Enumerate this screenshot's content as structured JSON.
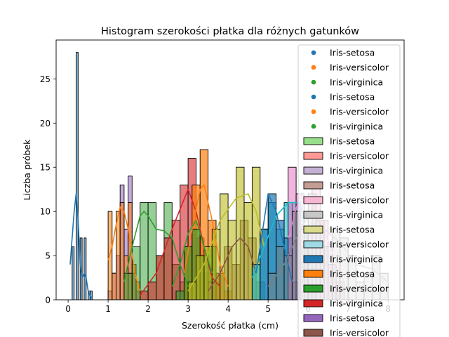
{
  "chart_data": {
    "type": "bar",
    "title": "Histogram szerokości płatka dla różnych gatunków",
    "xlabel": "Szerokość płatka (cm)",
    "ylabel": "Liczba próbek",
    "xlim": [
      -0.3,
      8.4
    ],
    "ylim": [
      0,
      29.4
    ],
    "xticks": [
      "0",
      "1",
      "2",
      "3",
      "4",
      "5",
      "6",
      "7",
      "8"
    ],
    "yticks": [
      "0",
      "5",
      "10",
      "15",
      "20",
      "25"
    ],
    "grid": false,
    "legend_position": "top-right",
    "legend": [
      {
        "label": "Iris-setosa",
        "kind": "dot",
        "color": "#1f77b4"
      },
      {
        "label": "Iris-versicolor",
        "kind": "dot",
        "color": "#ff7f0e"
      },
      {
        "label": "Iris-virginica",
        "kind": "dot",
        "color": "#2ca02c"
      },
      {
        "label": "Iris-setosa",
        "kind": "dot",
        "color": "#1f77b4"
      },
      {
        "label": "Iris-versicolor",
        "kind": "dot",
        "color": "#ff7f0e"
      },
      {
        "label": "Iris-virginica",
        "kind": "dot",
        "color": "#2ca02c"
      },
      {
        "label": "Iris-setosa",
        "kind": "patch",
        "color": "#98df8a"
      },
      {
        "label": "Iris-versicolor",
        "kind": "patch",
        "color": "#ff9896"
      },
      {
        "label": "Iris-virginica",
        "kind": "patch",
        "color": "#c5b0d5"
      },
      {
        "label": "Iris-setosa",
        "kind": "patch",
        "color": "#c49c94"
      },
      {
        "label": "Iris-versicolor",
        "kind": "patch",
        "color": "#f7b6d2"
      },
      {
        "label": "Iris-virginica",
        "kind": "patch",
        "color": "#c7c7c7"
      },
      {
        "label": "Iris-setosa",
        "kind": "patch",
        "color": "#dbdb8d"
      },
      {
        "label": "Iris-versicolor",
        "kind": "patch",
        "color": "#9edae5"
      },
      {
        "label": "Iris-virginica",
        "kind": "patch",
        "color": "#1f77b4"
      },
      {
        "label": "Iris-setosa",
        "kind": "patch",
        "color": "#ff7f0e"
      },
      {
        "label": "Iris-versicolor",
        "kind": "patch",
        "color": "#2ca02c"
      },
      {
        "label": "Iris-virginica",
        "kind": "patch",
        "color": "#d62728"
      },
      {
        "label": "Iris-setosa",
        "kind": "patch",
        "color": "#9467bd"
      },
      {
        "label": "Iris-versicolor",
        "kind": "patch",
        "color": "#8c564b"
      }
    ],
    "series": [
      {
        "color": "#1f77b4",
        "alpha": 0.55,
        "bins": [
          [
            0.1,
            0.15,
            6
          ],
          [
            0.2,
            0.25,
            28
          ],
          [
            0.3,
            0.35,
            7
          ],
          [
            0.4,
            0.45,
            7
          ],
          [
            0.5,
            0.55,
            1
          ],
          [
            0.55,
            0.6,
            1
          ]
        ],
        "kde": [
          [
            0.05,
            4
          ],
          [
            0.1,
            7
          ],
          [
            0.15,
            10
          ],
          [
            0.2,
            12
          ],
          [
            0.25,
            9
          ],
          [
            0.3,
            4
          ],
          [
            0.35,
            2.5
          ],
          [
            0.4,
            3
          ],
          [
            0.45,
            2.5
          ],
          [
            0.5,
            1
          ],
          [
            0.55,
            0.4
          ],
          [
            0.6,
            0.2
          ]
        ]
      },
      {
        "color": "#9467bd",
        "alpha": 0.55,
        "bins": [
          [
            1.0,
            1.1,
            1
          ],
          [
            1.1,
            1.2,
            3
          ],
          [
            1.2,
            1.3,
            5
          ],
          [
            1.3,
            1.4,
            13
          ],
          [
            1.4,
            1.5,
            8
          ],
          [
            1.5,
            1.6,
            14
          ],
          [
            1.6,
            1.7,
            3
          ],
          [
            1.7,
            1.8,
            1
          ]
        ],
        "kde": []
      },
      {
        "color": "#ff7f0e",
        "alpha": 0.55,
        "bins": [
          [
            1.0,
            1.1,
            10
          ],
          [
            1.1,
            1.2,
            3
          ],
          [
            1.2,
            1.3,
            10
          ],
          [
            1.3,
            1.4,
            11
          ],
          [
            1.4,
            1.5,
            5
          ],
          [
            1.5,
            1.6,
            11
          ],
          [
            1.6,
            1.7,
            4
          ],
          [
            1.7,
            1.8,
            2
          ]
        ],
        "kde": [
          [
            1.0,
            4.5
          ],
          [
            1.1,
            6
          ],
          [
            1.2,
            8.5
          ],
          [
            1.3,
            10.5
          ],
          [
            1.4,
            10
          ],
          [
            1.5,
            8
          ],
          [
            1.6,
            5
          ],
          [
            1.7,
            2.5
          ],
          [
            1.8,
            1
          ]
        ]
      },
      {
        "color": "#2ca02c",
        "alpha": 0.5,
        "bins": [
          [
            1.4,
            1.6,
            3
          ],
          [
            1.6,
            1.8,
            6
          ],
          [
            1.8,
            2.0,
            11
          ],
          [
            2.0,
            2.2,
            11
          ],
          [
            2.2,
            2.4,
            5
          ],
          [
            2.4,
            2.6,
            11
          ],
          [
            2.6,
            2.8,
            4
          ],
          [
            2.8,
            3.0,
            2
          ]
        ],
        "kde": [
          [
            1.4,
            2
          ],
          [
            1.6,
            6
          ],
          [
            1.8,
            9.5
          ],
          [
            1.9,
            10
          ],
          [
            2.0,
            9.5
          ],
          [
            2.2,
            8
          ],
          [
            2.4,
            7.8
          ],
          [
            2.6,
            7
          ],
          [
            2.8,
            4
          ],
          [
            3.0,
            1.5
          ]
        ]
      },
      {
        "color": "#d62728",
        "alpha": 0.6,
        "bins": [
          [
            1.8,
            2.0,
            1
          ],
          [
            2.0,
            2.2,
            2
          ],
          [
            2.2,
            2.4,
            5
          ],
          [
            2.4,
            2.6,
            7
          ],
          [
            2.6,
            2.8,
            9
          ],
          [
            2.8,
            3.0,
            13
          ],
          [
            3.0,
            3.2,
            16
          ],
          [
            3.2,
            3.4,
            7
          ],
          [
            3.4,
            3.6,
            3
          ],
          [
            3.6,
            3.8,
            2
          ]
        ],
        "kde": [
          [
            1.8,
            0.5
          ],
          [
            2.2,
            3
          ],
          [
            2.6,
            8
          ],
          [
            3.0,
            12.5
          ],
          [
            3.2,
            10
          ],
          [
            3.4,
            6
          ],
          [
            3.6,
            2.5
          ],
          [
            3.8,
            1.5
          ]
        ]
      },
      {
        "color": "#ff7f0e",
        "alpha": 0.7,
        "bins": [
          [
            2.9,
            3.1,
            6
          ],
          [
            3.1,
            3.3,
            13
          ],
          [
            3.3,
            3.5,
            17
          ],
          [
            3.5,
            3.7,
            9
          ],
          [
            3.7,
            3.9,
            3
          ],
          [
            3.9,
            4.1,
            1
          ]
        ],
        "kde": [
          [
            2.9,
            3
          ],
          [
            3.1,
            8
          ],
          [
            3.3,
            12.5
          ],
          [
            3.4,
            13
          ],
          [
            3.6,
            9
          ],
          [
            3.8,
            4
          ],
          [
            4.0,
            1.5
          ]
        ]
      },
      {
        "color": "#2ca02c",
        "alpha": 0.6,
        "bins": [
          [
            2.7,
            2.9,
            1
          ],
          [
            2.9,
            3.1,
            6
          ],
          [
            3.1,
            3.3,
            8
          ],
          [
            3.3,
            3.5,
            5
          ],
          [
            3.5,
            3.7,
            6
          ]
        ],
        "kde": [
          [
            2.6,
            1.5
          ],
          [
            2.8,
            4
          ],
          [
            3.0,
            7.5
          ],
          [
            3.2,
            9
          ],
          [
            3.4,
            6
          ],
          [
            3.6,
            3
          ]
        ]
      },
      {
        "color": "#8c564b",
        "alpha": 0.55,
        "bins": [
          [
            3.5,
            3.7,
            2
          ],
          [
            3.7,
            3.9,
            3
          ],
          [
            3.9,
            4.1,
            6
          ],
          [
            4.1,
            4.3,
            4
          ],
          [
            4.3,
            4.5,
            9
          ],
          [
            4.5,
            4.7,
            7
          ],
          [
            4.7,
            4.9,
            2
          ]
        ],
        "kde": [
          [
            3.5,
            1
          ],
          [
            3.8,
            3
          ],
          [
            4.1,
            6
          ],
          [
            4.3,
            7
          ],
          [
            4.5,
            6
          ],
          [
            4.7,
            3
          ]
        ]
      },
      {
        "color": "#bcbd22",
        "alpha": 0.6,
        "bins": [
          [
            3.0,
            3.2,
            2
          ],
          [
            3.2,
            3.4,
            5
          ],
          [
            3.4,
            3.6,
            6
          ],
          [
            3.6,
            3.8,
            8
          ],
          [
            3.8,
            4.0,
            12
          ],
          [
            4.0,
            4.2,
            9
          ],
          [
            4.2,
            4.4,
            15
          ],
          [
            4.4,
            4.6,
            11
          ],
          [
            4.6,
            4.8,
            15
          ]
        ],
        "kde": [
          [
            3.0,
            1
          ],
          [
            3.4,
            4
          ],
          [
            3.8,
            9
          ],
          [
            4.2,
            11.5
          ],
          [
            4.5,
            12
          ],
          [
            4.7,
            10
          ],
          [
            4.9,
            6
          ]
        ]
      },
      {
        "color": "#17becf",
        "alpha": 0.6,
        "bins": [
          [
            4.6,
            4.8,
            4
          ],
          [
            4.8,
            5.0,
            8
          ],
          [
            5.0,
            5.2,
            11
          ],
          [
            5.2,
            5.4,
            8
          ],
          [
            5.4,
            5.6,
            11
          ],
          [
            5.6,
            5.8,
            11
          ],
          [
            5.8,
            6.0,
            6
          ],
          [
            6.0,
            6.2,
            1
          ]
        ],
        "kde": [
          [
            4.6,
            2.5
          ],
          [
            4.9,
            6
          ],
          [
            5.2,
            9.5
          ],
          [
            5.5,
            11
          ],
          [
            5.8,
            11
          ],
          [
            6.0,
            6
          ],
          [
            6.2,
            2
          ]
        ]
      },
      {
        "color": "#1f77b4",
        "alpha": 0.7,
        "bins": [
          [
            4.8,
            5.0,
            8
          ],
          [
            5.0,
            5.2,
            12
          ],
          [
            5.2,
            5.4,
            9
          ],
          [
            5.4,
            5.6,
            7
          ],
          [
            5.6,
            5.8,
            2
          ]
        ],
        "kde": [
          [
            4.7,
            3
          ],
          [
            4.9,
            9
          ],
          [
            5.0,
            12
          ],
          [
            5.2,
            10
          ],
          [
            5.4,
            6
          ],
          [
            5.6,
            2
          ]
        ]
      },
      {
        "color": "#e377c2",
        "alpha": 0.55,
        "bins": [
          [
            5.5,
            5.7,
            15
          ],
          [
            5.7,
            5.9,
            12
          ],
          [
            5.9,
            6.1,
            8
          ],
          [
            6.1,
            6.3,
            13
          ],
          [
            6.3,
            6.5,
            9
          ],
          [
            6.5,
            6.7,
            4
          ],
          [
            6.7,
            6.9,
            2
          ]
        ],
        "kde": [
          [
            5.5,
            7
          ],
          [
            5.8,
            12
          ],
          [
            6.1,
            11
          ],
          [
            6.4,
            8
          ],
          [
            6.7,
            4
          ],
          [
            6.9,
            2
          ]
        ]
      },
      {
        "color": "#7f7f7f",
        "alpha": 0.45,
        "bins": [
          [
            5.0,
            5.2,
            3
          ],
          [
            5.2,
            5.4,
            6
          ],
          [
            5.4,
            5.6,
            5
          ],
          [
            5.6,
            5.8,
            10
          ],
          [
            5.8,
            6.0,
            8
          ],
          [
            6.0,
            6.2,
            12
          ],
          [
            6.2,
            6.4,
            9
          ],
          [
            6.4,
            6.6,
            6
          ],
          [
            6.6,
            6.8,
            8
          ],
          [
            6.8,
            7.0,
            7
          ],
          [
            7.0,
            7.2,
            5
          ],
          [
            7.2,
            7.4,
            2
          ],
          [
            7.4,
            7.6,
            3
          ],
          [
            7.6,
            7.8,
            5
          ],
          [
            7.8,
            8.0,
            3
          ]
        ],
        "kde": [
          [
            5.0,
            1.5
          ],
          [
            5.4,
            4
          ],
          [
            5.8,
            8
          ],
          [
            6.1,
            10
          ],
          [
            6.4,
            8
          ],
          [
            6.8,
            6.5
          ],
          [
            7.2,
            4
          ],
          [
            7.6,
            3.5
          ],
          [
            8.0,
            2
          ]
        ]
      }
    ]
  }
}
